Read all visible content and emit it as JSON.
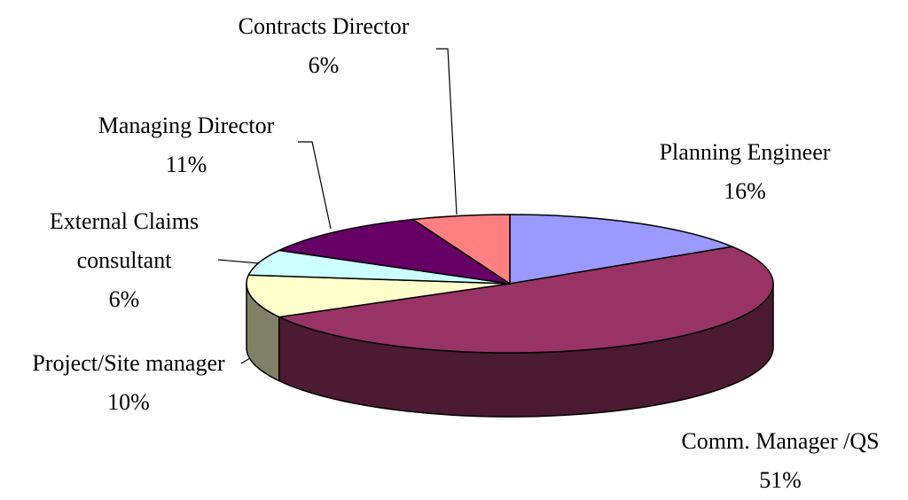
{
  "chart_data": {
    "type": "pie3d",
    "categories": [
      "Planning Engineer",
      "Comm. Manager /QS",
      "Project/Site manager",
      "External Claims consultant",
      "Managing Director",
      "Contracts Director"
    ],
    "values": [
      16,
      51,
      10,
      6,
      11,
      6
    ],
    "value_labels": [
      "16%",
      "51%",
      "10%",
      "6%",
      "11%",
      "6%"
    ],
    "colors": [
      "#9999ff",
      "#993366",
      "#ffffcc",
      "#ccffff",
      "#660066",
      "#ff8080"
    ]
  }
}
